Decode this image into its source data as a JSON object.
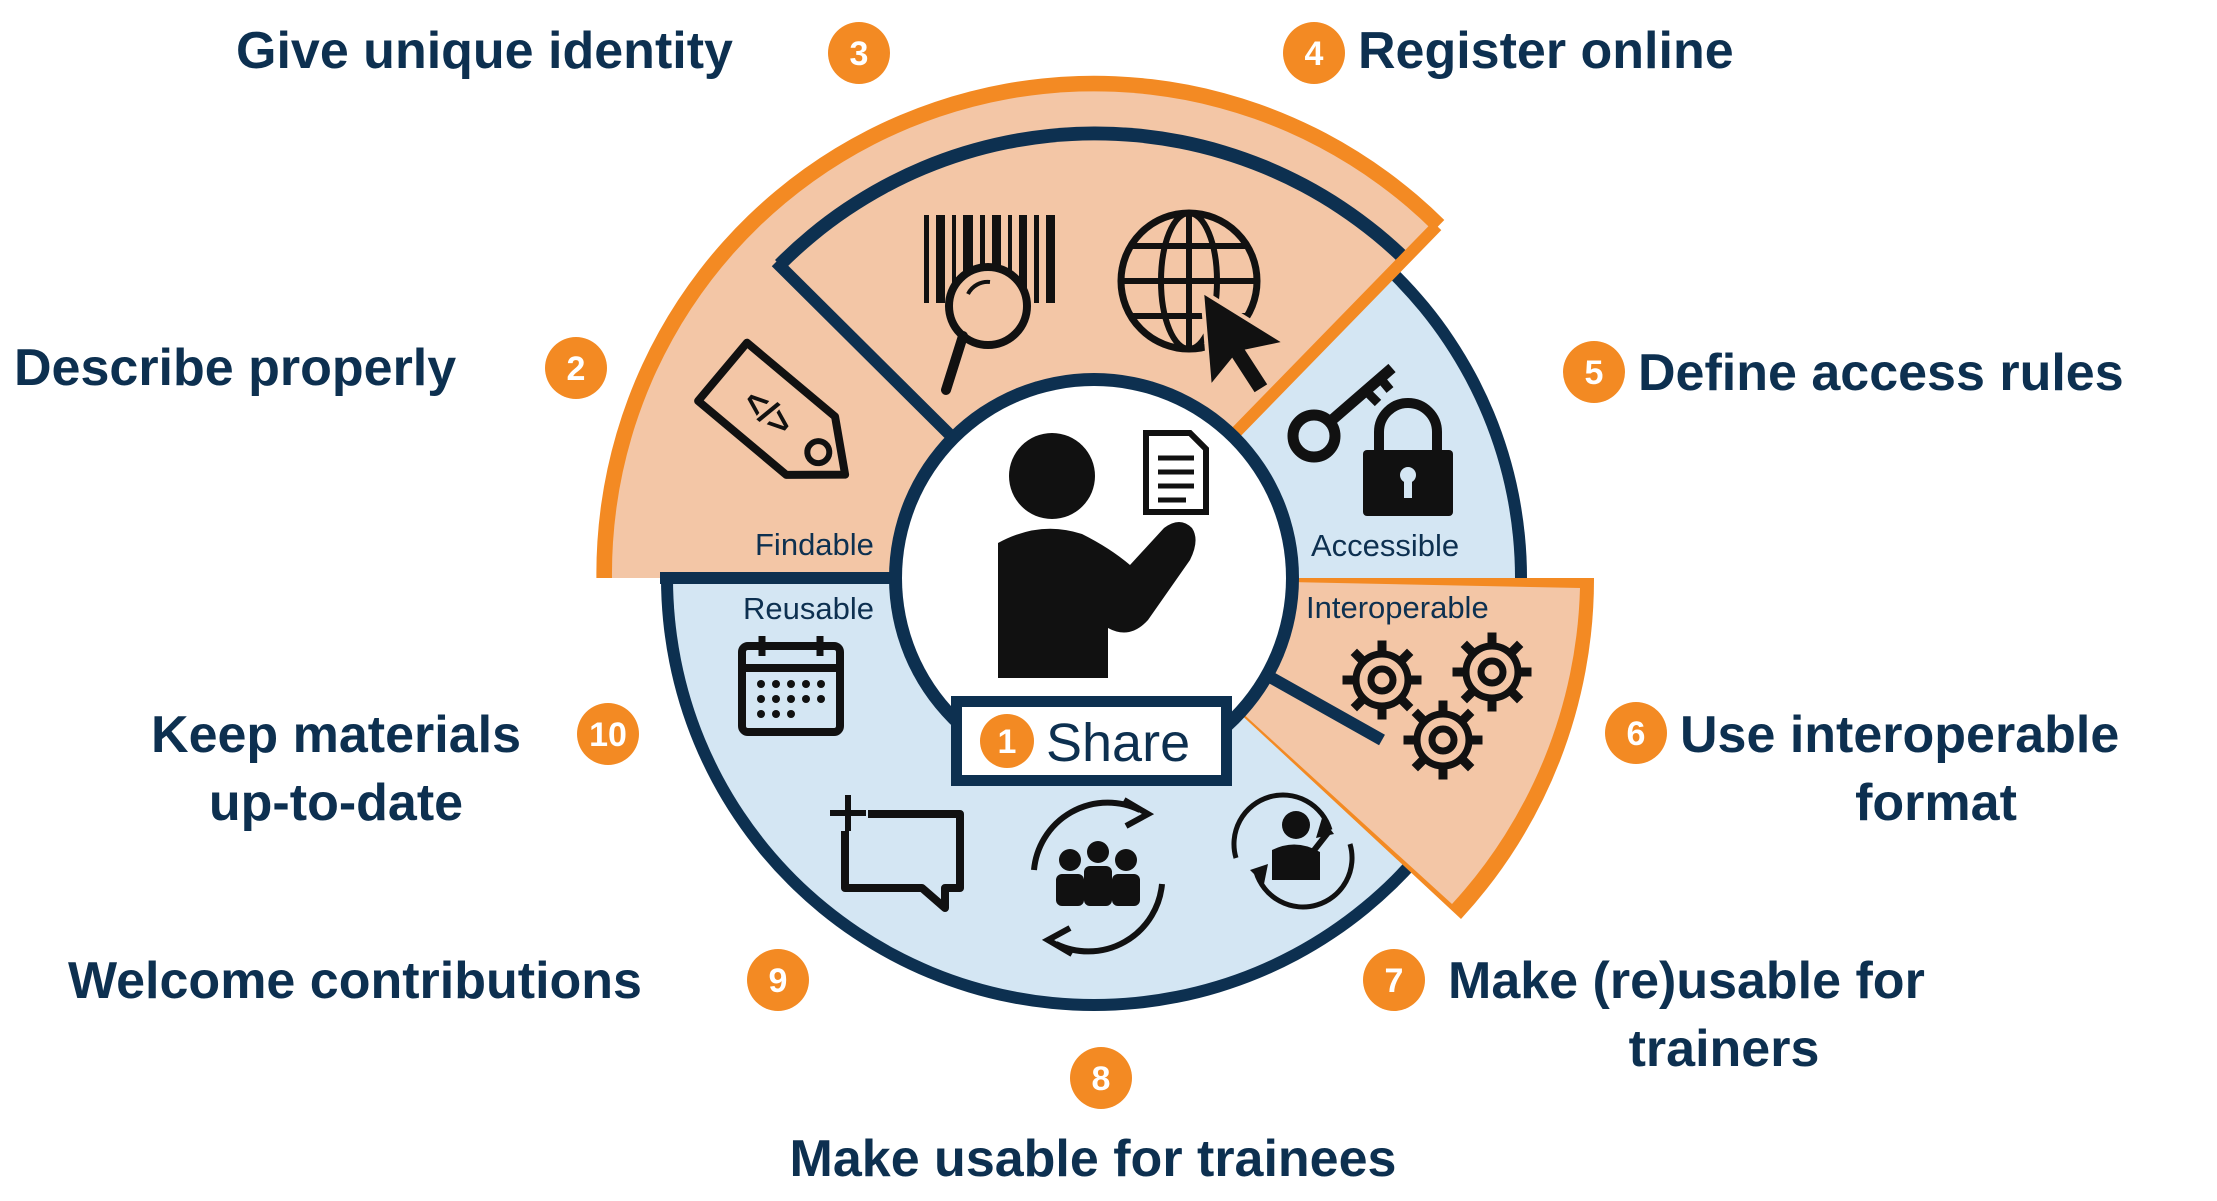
{
  "colors": {
    "navy": "#0d3050",
    "orange": "#f38a23",
    "peach": "#f3c6a6",
    "light_blue": "#d4e6f3",
    "icon": "#111111"
  },
  "center": {
    "badge": "1",
    "label": "Share",
    "icon": "person-with-document-icon"
  },
  "categories": {
    "findable": "Findable",
    "accessible": "Accessible",
    "interoperable": "Interoperable",
    "reusable": "Reusable"
  },
  "steps": [
    {
      "num": "2",
      "lines": [
        "Describe properly"
      ]
    },
    {
      "num": "3",
      "lines": [
        "Give unique identity"
      ]
    },
    {
      "num": "4",
      "lines": [
        "Register online"
      ]
    },
    {
      "num": "5",
      "lines": [
        "Define access rules"
      ]
    },
    {
      "num": "6",
      "lines": [
        "Use interoperable",
        "format"
      ]
    },
    {
      "num": "7",
      "lines": [
        "Make (re)usable for",
        "trainers"
      ]
    },
    {
      "num": "8",
      "lines": [
        "Make usable for trainees"
      ]
    },
    {
      "num": "9",
      "lines": [
        "Welcome contributions"
      ]
    },
    {
      "num": "10",
      "lines": [
        "Keep materials",
        "up-to-date"
      ]
    }
  ],
  "icons": [
    "code-tag-icon",
    "barcode-search-icon",
    "globe-cursor-icon",
    "key-lock-icon",
    "gears-icon",
    "presenter-cycle-icon",
    "team-cycle-icon",
    "add-comment-icon",
    "calendar-icon"
  ]
}
